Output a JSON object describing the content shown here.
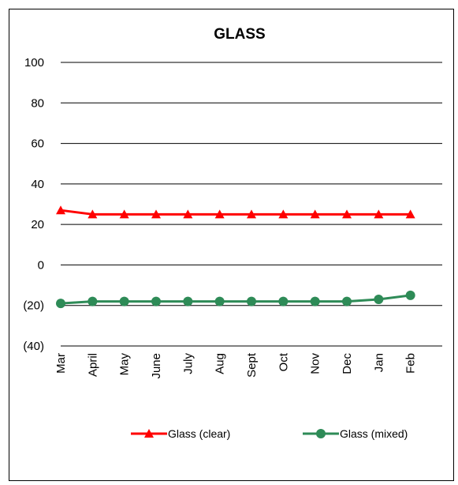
{
  "chart_data": {
    "type": "line",
    "title": "GLASS",
    "xlabel": "",
    "ylabel": "",
    "categories": [
      "Mar",
      "April",
      "May",
      "June",
      "July",
      "Aug",
      "Sept",
      "Oct",
      "Nov",
      "Dec",
      "Jan",
      "Feb"
    ],
    "ylim": [
      -40,
      100
    ],
    "yticks": [
      100,
      80,
      60,
      40,
      20,
      0,
      -20,
      -40
    ],
    "ytick_labels": [
      "100",
      "80",
      "60",
      "40",
      "20",
      "0",
      "(20)",
      "(40)"
    ],
    "grid": true,
    "legend_position": "bottom",
    "series": [
      {
        "name": "Glass (clear)",
        "color": "#ff0000",
        "marker": "triangle",
        "values": [
          27,
          25,
          25,
          25,
          25,
          25,
          25,
          25,
          25,
          25,
          25,
          25
        ]
      },
      {
        "name": "Glass (mixed)",
        "color": "#2e8b57",
        "marker": "circle",
        "values": [
          -19,
          -18,
          -18,
          -18,
          -18,
          -18,
          -18,
          -18,
          -18,
          -18,
          -17,
          -15
        ]
      }
    ]
  }
}
